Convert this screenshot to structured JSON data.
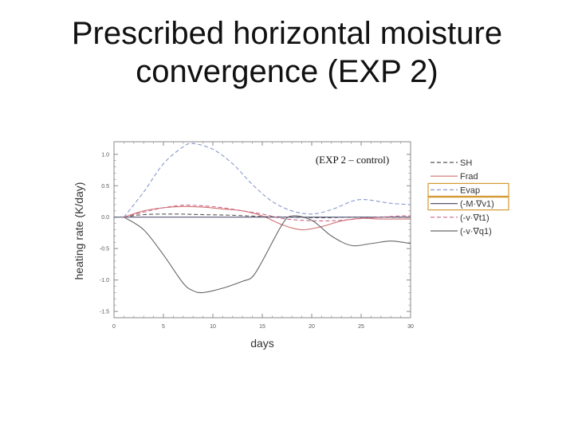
{
  "slide": {
    "title_line1": "Prescribed horizontal moisture",
    "title_line2": "convergence (EXP 2)"
  },
  "chart_data": {
    "type": "line",
    "title": "",
    "annotation": "(EXP 2 – control)",
    "xlabel": "days",
    "ylabel": "heating rate (K/day)",
    "xlim": [
      0,
      30
    ],
    "ylim": [
      -1.6,
      1.2
    ],
    "xticks": [
      0,
      5,
      10,
      15,
      20,
      25,
      30
    ],
    "yticks": [
      1.0,
      0.5,
      0.0,
      -0.5,
      -1.0,
      -1.5
    ],
    "xtick_labels": [
      "0",
      "5",
      "10",
      "15",
      "20",
      "25",
      "30"
    ],
    "ytick_labels": [
      "1.0",
      "0.5",
      "0.0",
      "-0.5",
      "-1.0",
      "-1.5"
    ],
    "grid": false,
    "legend_position": "right-outside",
    "series": [
      {
        "name": "SH",
        "color": "#555555",
        "dash": "dashed",
        "x": [
          1,
          3,
          6,
          9,
          12,
          15,
          18,
          21,
          24,
          27,
          30
        ],
        "y": [
          0,
          0.04,
          0.05,
          0.04,
          0.03,
          0.01,
          0.0,
          -0.01,
          0.0,
          0.0,
          0.0
        ]
      },
      {
        "name": "Frad",
        "color": "#d07070",
        "dash": "solid",
        "x": [
          1,
          3,
          5,
          7,
          9,
          11,
          13,
          15,
          17,
          19,
          21,
          23,
          25,
          27,
          29,
          30
        ],
        "y": [
          0,
          0.1,
          0.15,
          0.17,
          0.16,
          0.13,
          0.1,
          0.02,
          -0.12,
          -0.2,
          -0.15,
          -0.06,
          -0.02,
          -0.03,
          -0.03,
          -0.03
        ]
      },
      {
        "name": "Evap",
        "color": "#8899cc",
        "dash": "dashed",
        "x": [
          1,
          3,
          5,
          7,
          8,
          10,
          12,
          14,
          16,
          18,
          20,
          22,
          24,
          25,
          26,
          28,
          30
        ],
        "y": [
          0,
          0.4,
          0.85,
          1.12,
          1.17,
          1.08,
          0.85,
          0.52,
          0.25,
          0.1,
          0.05,
          0.12,
          0.25,
          0.28,
          0.27,
          0.22,
          0.2
        ]
      },
      {
        "name": "(-M·∇v1)",
        "color": "#555577",
        "dash": "solid",
        "x": [
          0,
          30
        ],
        "y": [
          0,
          0
        ]
      },
      {
        "name": "(-v·∇t1)",
        "color": "#cc6688",
        "dash": "dashed",
        "x": [
          1,
          3,
          5,
          7,
          9,
          11,
          13,
          15,
          17,
          19,
          21,
          23,
          25,
          27,
          29,
          30
        ],
        "y": [
          0,
          0.08,
          0.15,
          0.19,
          0.18,
          0.15,
          0.1,
          0.05,
          -0.02,
          -0.05,
          -0.06,
          -0.05,
          -0.02,
          0.0,
          0.02,
          0.02
        ]
      },
      {
        "name": "(-v·∇q1)",
        "color": "#666666",
        "dash": "solid",
        "x": [
          1,
          3,
          5,
          7,
          8,
          9,
          11,
          13,
          14,
          15,
          17,
          18,
          20,
          22,
          24,
          26,
          28,
          30
        ],
        "y": [
          0,
          -0.2,
          -0.6,
          -1.05,
          -1.17,
          -1.2,
          -1.13,
          -1.02,
          -0.95,
          -0.7,
          -0.12,
          0.02,
          -0.05,
          -0.3,
          -0.45,
          -0.42,
          -0.38,
          -0.42
        ]
      }
    ],
    "highlighted_legend_entries": [
      "Evap",
      "(-M·∇v1)"
    ],
    "highlight_color": "#d49a30"
  }
}
